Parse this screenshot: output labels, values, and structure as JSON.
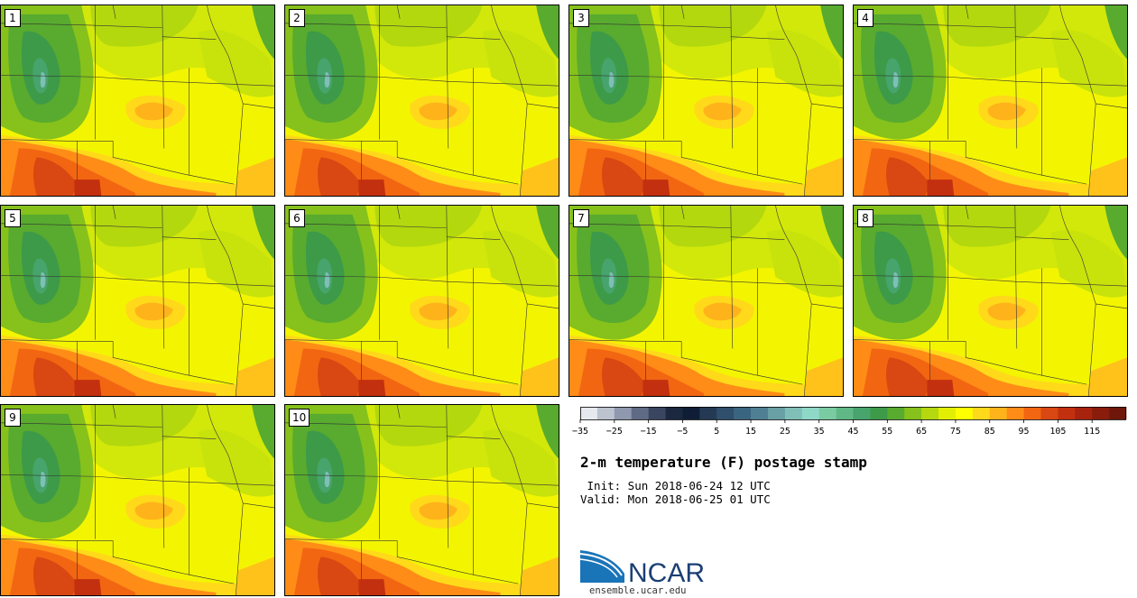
{
  "panels": [
    {
      "label": "1"
    },
    {
      "label": "2"
    },
    {
      "label": "3"
    },
    {
      "label": "4"
    },
    {
      "label": "5"
    },
    {
      "label": "6"
    },
    {
      "label": "7"
    },
    {
      "label": "8"
    },
    {
      "label": "9"
    },
    {
      "label": "10"
    }
  ],
  "colorbar": {
    "colors": [
      "#e6e9ee",
      "#bcc3cf",
      "#8f98ae",
      "#5f6a85",
      "#3a4560",
      "#1c2840",
      "#0f1e36",
      "#243a54",
      "#2f4f6c",
      "#3a6580",
      "#4f7f93",
      "#68a0a6",
      "#7fbfb7",
      "#8fd8c8",
      "#7acba2",
      "#5fb885",
      "#47a46c",
      "#3d9a48",
      "#58ab2e",
      "#86c11c",
      "#b5d80e",
      "#e3ee05",
      "#ffff00",
      "#ffd91a",
      "#ffb31a",
      "#ff8c16",
      "#f26612",
      "#d94712",
      "#c2300f",
      "#a8230e",
      "#8a1c0c",
      "#6e170a"
    ],
    "ticks": [
      "−35",
      "−25",
      "−15",
      "−5",
      "5",
      "15",
      "25",
      "35",
      "45",
      "55",
      "65",
      "75",
      "85",
      "95",
      "105",
      "115"
    ]
  },
  "title": "2-m temperature (F) postage stamp",
  "init": " Init: Sun 2018-06-24 12 UTC",
  "valid": "Valid: Mon 2018-06-25 01 UTC",
  "logo": {
    "name": "NCAR",
    "url_text": "ensemble.ucar.edu"
  }
}
